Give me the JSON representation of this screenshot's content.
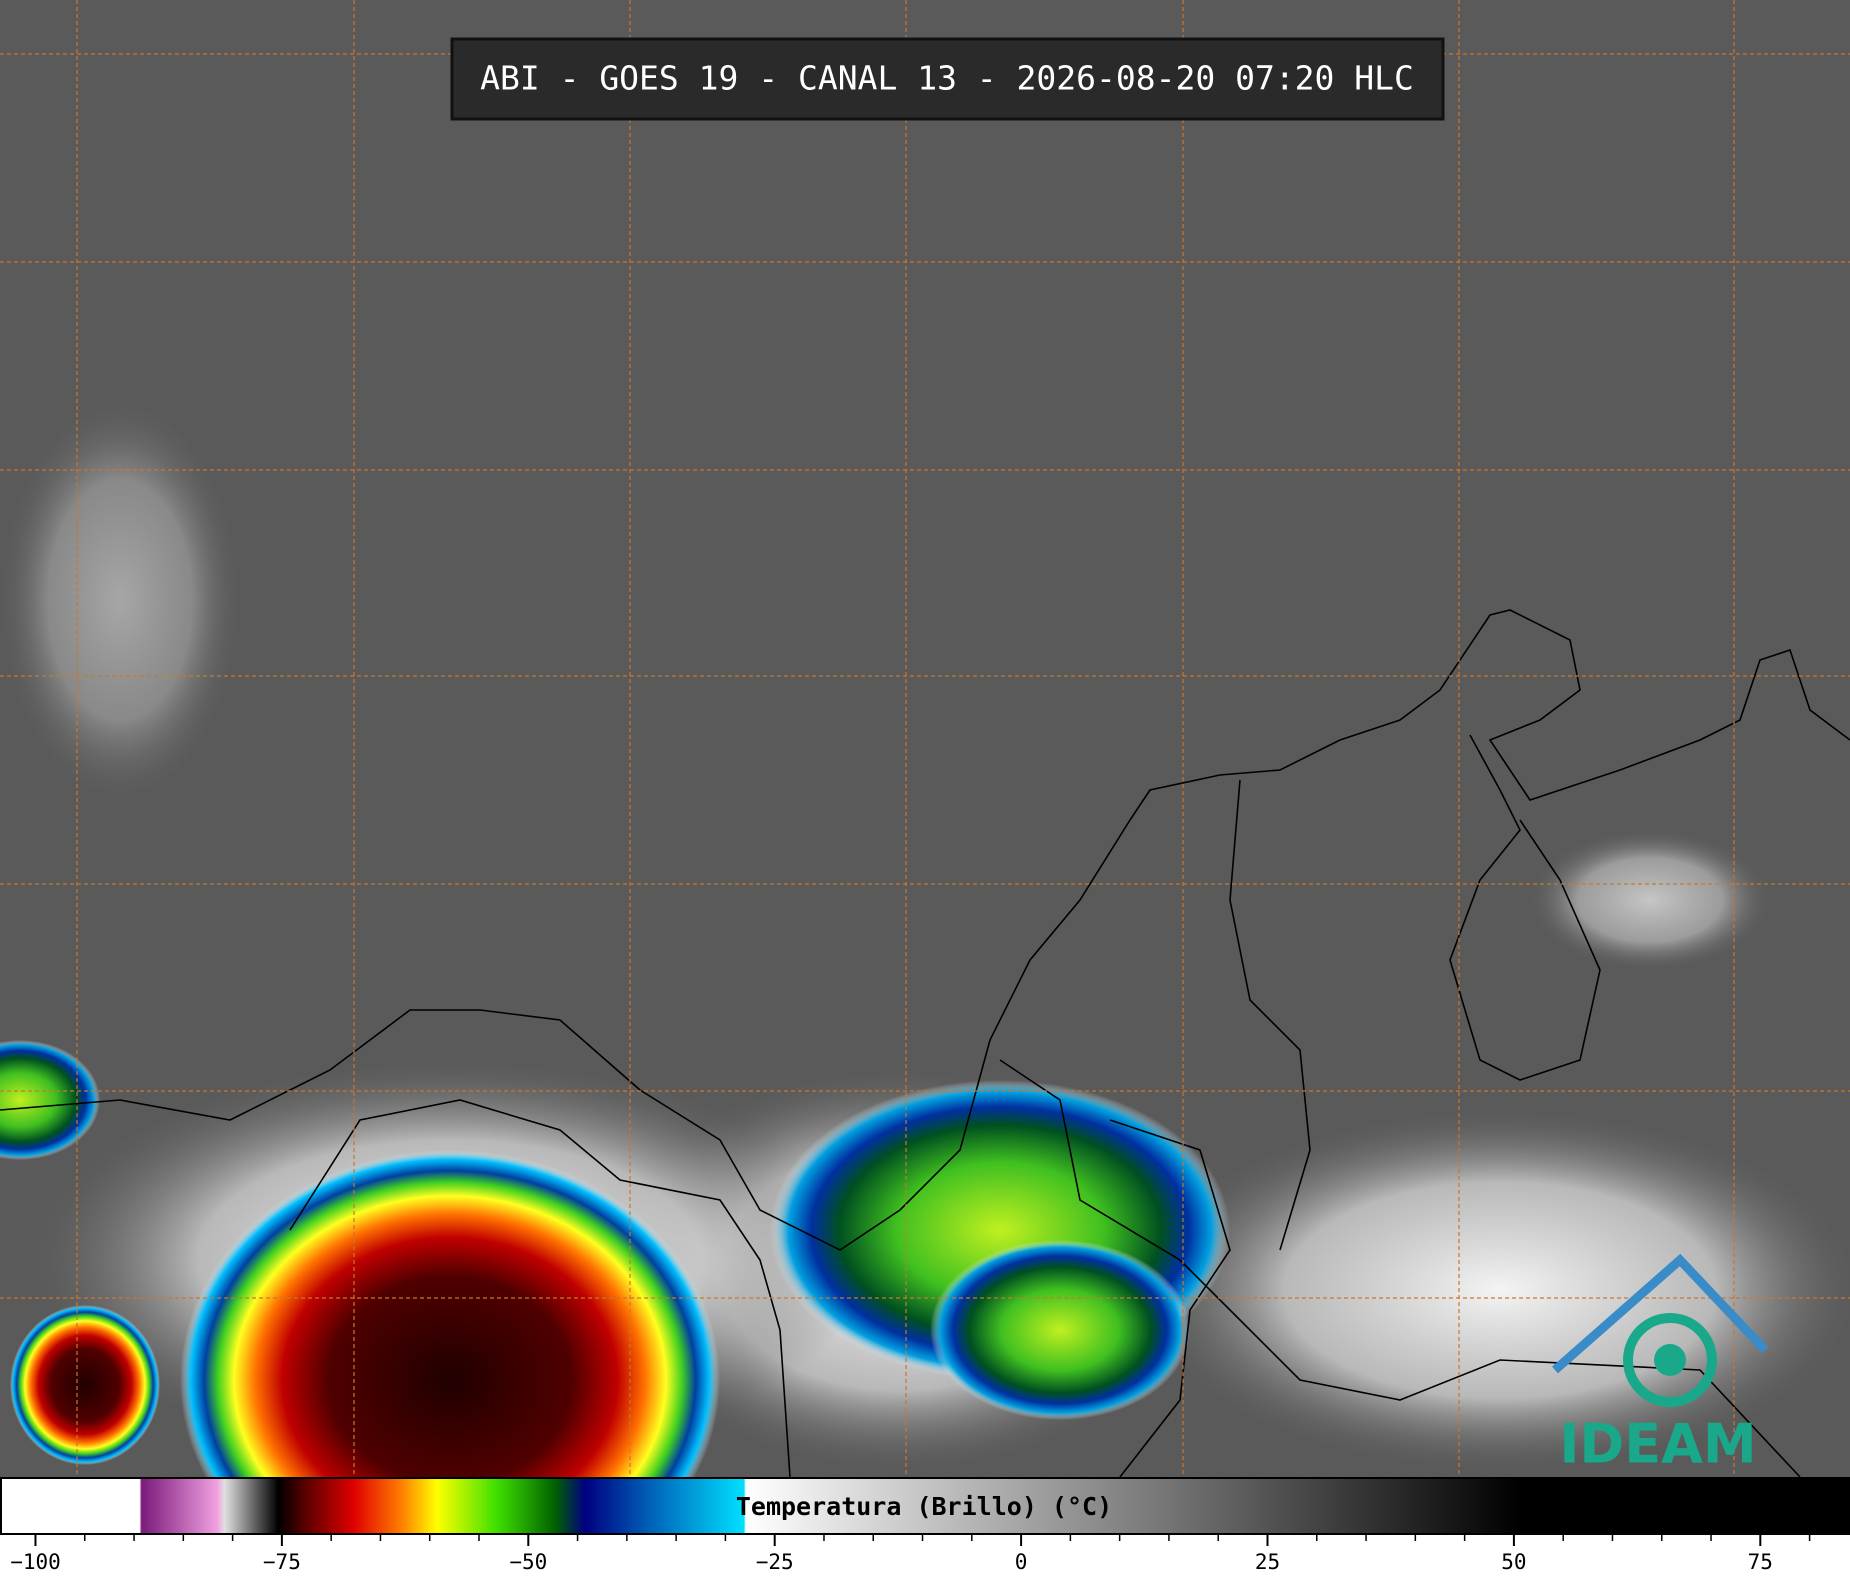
{
  "title": "ABI - GOES 19 - CANAL 13 - 2026-08-20 07:20 HLC",
  "logo": "IDEAM",
  "colorbar": {
    "label": "Temperatura (Brillo) (°C)",
    "xlim": [
      -103.6,
      84.1
    ],
    "xticks": [
      {
        "value": -100,
        "label": "−100"
      },
      {
        "value": -75,
        "label": "−75"
      },
      {
        "value": -50,
        "label": "−50"
      },
      {
        "value": -25,
        "label": "−25"
      },
      0,
      25,
      50,
      75
    ],
    "xminorticks": [
      -95,
      -90,
      -85,
      -80,
      -70,
      -65,
      -60,
      -55,
      -45,
      -40,
      -35,
      -30,
      -20,
      -15,
      -10,
      -5,
      5,
      10,
      15,
      20,
      30,
      35,
      40,
      45,
      55,
      60,
      65,
      70,
      80
    ]
  }
}
